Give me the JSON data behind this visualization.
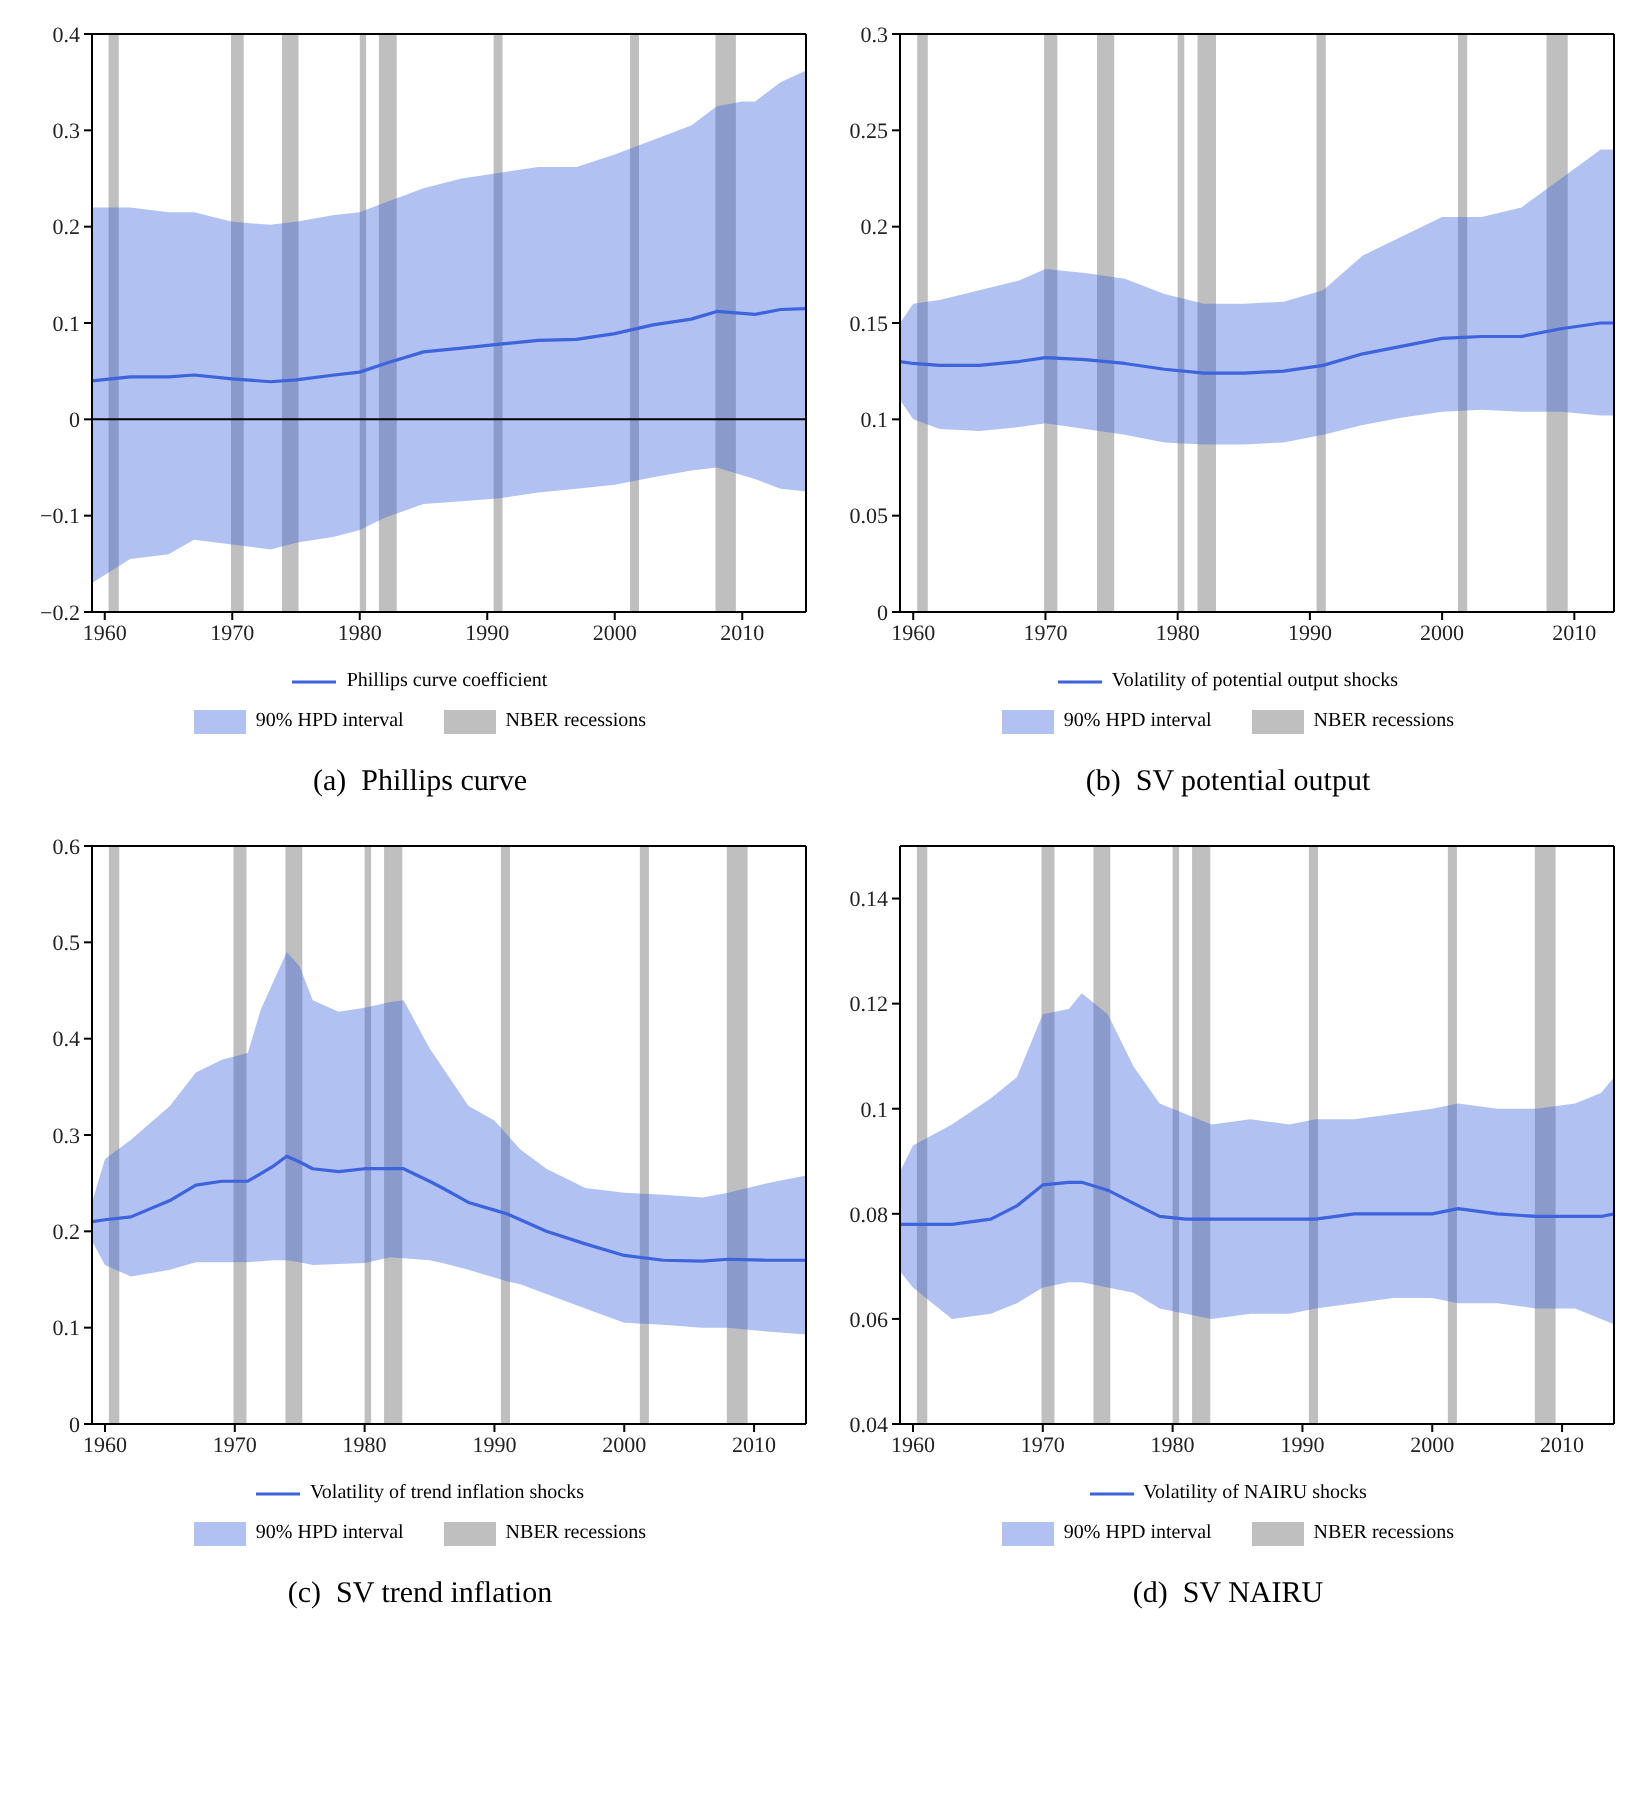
{
  "chart_data": [
    {
      "type": "line",
      "title": "(a)  Phillips curve",
      "xlim": [
        1959,
        2015
      ],
      "xticks": [
        1960,
        1970,
        1980,
        1990,
        2000,
        2010
      ],
      "ylim": [
        -0.2,
        0.4
      ],
      "yticks": [
        -0.2,
        -0.1,
        0,
        0.1,
        0.2,
        0.3,
        0.4
      ],
      "legend": "bottom",
      "annotations": [
        "90% HPD interval"
      ],
      "ref_lines": [
        {
          "axis": "y",
          "value": 0,
          "color": "#000000"
        }
      ],
      "bands": [
        {
          "axis": "x",
          "from": 1960.3,
          "to": 1961.1,
          "label": "NBER recessions",
          "color": "#bfbfbf"
        },
        {
          "axis": "x",
          "from": 1969.9,
          "to": 1970.9,
          "color": "#bfbfbf"
        },
        {
          "axis": "x",
          "from": 1973.9,
          "to": 1975.2,
          "color": "#bfbfbf"
        },
        {
          "axis": "x",
          "from": 1980.0,
          "to": 1980.5,
          "color": "#bfbfbf"
        },
        {
          "axis": "x",
          "from": 1981.5,
          "to": 1982.9,
          "color": "#bfbfbf"
        },
        {
          "axis": "x",
          "from": 1990.5,
          "to": 1991.2,
          "color": "#bfbfbf"
        },
        {
          "axis": "x",
          "from": 2001.2,
          "to": 2001.9,
          "color": "#bfbfbf"
        },
        {
          "axis": "x",
          "from": 2007.9,
          "to": 2009.5,
          "color": "#bfbfbf"
        }
      ],
      "series": [
        {
          "name": "Phillips curve coefficient",
          "color": "#3d63dd",
          "x": [
            1959,
            1962,
            1965,
            1967,
            1970,
            1973,
            1975,
            1978,
            1980,
            1982,
            1985,
            1988,
            1991,
            1994,
            1997,
            2000,
            2003,
            2006,
            2008,
            2010,
            2011,
            2013,
            2015
          ],
          "values": [
            0.04,
            0.044,
            0.044,
            0.046,
            0.042,
            0.039,
            0.041,
            0.046,
            0.049,
            0.058,
            0.07,
            0.074,
            0.078,
            0.082,
            0.083,
            0.089,
            0.098,
            0.104,
            0.112,
            0.11,
            0.109,
            0.114,
            0.115
          ],
          "lower": [
            -0.17,
            -0.145,
            -0.14,
            -0.125,
            -0.13,
            -0.135,
            -0.128,
            -0.122,
            -0.115,
            -0.102,
            -0.088,
            -0.085,
            -0.082,
            -0.076,
            -0.072,
            -0.068,
            -0.06,
            -0.053,
            -0.05,
            -0.058,
            -0.062,
            -0.072,
            -0.075
          ],
          "upper": [
            0.22,
            0.22,
            0.215,
            0.215,
            0.205,
            0.202,
            0.205,
            0.212,
            0.215,
            0.225,
            0.24,
            0.25,
            0.256,
            0.262,
            0.262,
            0.275,
            0.29,
            0.305,
            0.325,
            0.33,
            0.33,
            0.35,
            0.362
          ]
        }
      ]
    },
    {
      "type": "line",
      "title": "(b)  SV potential output",
      "xlim": [
        1959,
        2013
      ],
      "xticks": [
        1960,
        1970,
        1980,
        1990,
        2000,
        2010
      ],
      "ylim": [
        0,
        0.3
      ],
      "yticks": [
        0,
        0.05,
        0.1,
        0.15,
        0.2,
        0.25,
        0.3
      ],
      "legend": "bottom",
      "annotations": [
        "90% HPD interval"
      ],
      "bands": [
        {
          "axis": "x",
          "from": 1960.3,
          "to": 1961.1,
          "label": "NBER recessions",
          "color": "#bfbfbf"
        },
        {
          "axis": "x",
          "from": 1969.9,
          "to": 1970.9,
          "color": "#bfbfbf"
        },
        {
          "axis": "x",
          "from": 1973.9,
          "to": 1975.2,
          "color": "#bfbfbf"
        },
        {
          "axis": "x",
          "from": 1980.0,
          "to": 1980.5,
          "color": "#bfbfbf"
        },
        {
          "axis": "x",
          "from": 1981.5,
          "to": 1982.9,
          "color": "#bfbfbf"
        },
        {
          "axis": "x",
          "from": 1990.5,
          "to": 1991.2,
          "color": "#bfbfbf"
        },
        {
          "axis": "x",
          "from": 2001.2,
          "to": 2001.9,
          "color": "#bfbfbf"
        },
        {
          "axis": "x",
          "from": 2007.9,
          "to": 2009.5,
          "color": "#bfbfbf"
        }
      ],
      "series": [
        {
          "name": "Volatility of potential output shocks",
          "color": "#3d63dd",
          "x": [
            1959,
            1960,
            1962,
            1965,
            1968,
            1970,
            1973,
            1976,
            1979,
            1982,
            1985,
            1988,
            1991,
            1994,
            1997,
            2000,
            2003,
            2006,
            2009,
            2012,
            2013
          ],
          "values": [
            0.13,
            0.129,
            0.128,
            0.128,
            0.13,
            0.132,
            0.131,
            0.129,
            0.126,
            0.124,
            0.124,
            0.125,
            0.128,
            0.134,
            0.138,
            0.142,
            0.143,
            0.143,
            0.147,
            0.15,
            0.15
          ],
          "lower": [
            0.11,
            0.1,
            0.095,
            0.094,
            0.096,
            0.098,
            0.095,
            0.092,
            0.088,
            0.087,
            0.087,
            0.088,
            0.092,
            0.097,
            0.101,
            0.104,
            0.105,
            0.104,
            0.104,
            0.102,
            0.102
          ],
          "upper": [
            0.15,
            0.16,
            0.162,
            0.167,
            0.172,
            0.178,
            0.176,
            0.173,
            0.165,
            0.16,
            0.16,
            0.161,
            0.167,
            0.185,
            0.195,
            0.205,
            0.205,
            0.21,
            0.225,
            0.24,
            0.24
          ]
        }
      ]
    },
    {
      "type": "line",
      "title": "(c)  SV trend inflation",
      "xlim": [
        1959,
        2014
      ],
      "xticks": [
        1960,
        1970,
        1980,
        1990,
        2000,
        2010
      ],
      "ylim": [
        0,
        0.6
      ],
      "yticks": [
        0,
        0.1,
        0.2,
        0.3,
        0.4,
        0.5,
        0.6
      ],
      "legend": "bottom",
      "annotations": [
        "90% HPD interval"
      ],
      "bands": [
        {
          "axis": "x",
          "from": 1960.3,
          "to": 1961.1,
          "label": "NBER recessions",
          "color": "#bfbfbf"
        },
        {
          "axis": "x",
          "from": 1969.9,
          "to": 1970.9,
          "color": "#bfbfbf"
        },
        {
          "axis": "x",
          "from": 1973.9,
          "to": 1975.2,
          "color": "#bfbfbf"
        },
        {
          "axis": "x",
          "from": 1980.0,
          "to": 1980.5,
          "color": "#bfbfbf"
        },
        {
          "axis": "x",
          "from": 1981.5,
          "to": 1982.9,
          "color": "#bfbfbf"
        },
        {
          "axis": "x",
          "from": 1990.5,
          "to": 1991.2,
          "color": "#bfbfbf"
        },
        {
          "axis": "x",
          "from": 2001.2,
          "to": 2001.9,
          "color": "#bfbfbf"
        },
        {
          "axis": "x",
          "from": 2007.9,
          "to": 2009.5,
          "color": "#bfbfbf"
        }
      ],
      "series": [
        {
          "name": "Volatility of trend inflation shocks",
          "color": "#3d63dd",
          "x": [
            1959,
            1960,
            1962,
            1965,
            1967,
            1969,
            1971,
            1972,
            1973,
            1974,
            1975,
            1976,
            1978,
            1980,
            1982,
            1983,
            1985,
            1986,
            1988,
            1990,
            1991,
            1992,
            1994,
            1997,
            2000,
            2003,
            2006,
            2008,
            2011,
            2014
          ],
          "values": [
            0.21,
            0.212,
            0.215,
            0.232,
            0.248,
            0.252,
            0.252,
            0.26,
            0.268,
            0.278,
            0.272,
            0.265,
            0.262,
            0.265,
            0.265,
            0.265,
            0.252,
            0.245,
            0.23,
            0.222,
            0.218,
            0.212,
            0.2,
            0.187,
            0.175,
            0.17,
            0.169,
            0.171,
            0.17,
            0.17
          ],
          "lower": [
            0.19,
            0.165,
            0.153,
            0.16,
            0.168,
            0.168,
            0.168,
            0.169,
            0.17,
            0.17,
            0.168,
            0.165,
            0.166,
            0.167,
            0.173,
            0.172,
            0.17,
            0.167,
            0.16,
            0.152,
            0.148,
            0.145,
            0.135,
            0.12,
            0.105,
            0.103,
            0.1,
            0.1,
            0.096,
            0.093
          ],
          "upper": [
            0.23,
            0.275,
            0.295,
            0.33,
            0.365,
            0.378,
            0.385,
            0.43,
            0.46,
            0.49,
            0.475,
            0.44,
            0.428,
            0.432,
            0.438,
            0.44,
            0.39,
            0.37,
            0.33,
            0.315,
            0.3,
            0.285,
            0.265,
            0.245,
            0.24,
            0.238,
            0.235,
            0.24,
            0.25,
            0.258
          ]
        }
      ]
    },
    {
      "type": "line",
      "title": "(d)  SV NAIRU",
      "xlim": [
        1959,
        2014
      ],
      "xticks": [
        1960,
        1970,
        1980,
        1990,
        2000,
        2010
      ],
      "ylim": [
        0.04,
        0.15
      ],
      "yticks": [
        0.04,
        0.06,
        0.08,
        0.1,
        0.12,
        0.14
      ],
      "legend": "bottom",
      "annotations": [
        "90% HPD interval"
      ],
      "bands": [
        {
          "axis": "x",
          "from": 1960.3,
          "to": 1961.1,
          "label": "NBER recessions",
          "color": "#bfbfbf"
        },
        {
          "axis": "x",
          "from": 1969.9,
          "to": 1970.9,
          "color": "#bfbfbf"
        },
        {
          "axis": "x",
          "from": 1973.9,
          "to": 1975.2,
          "color": "#bfbfbf"
        },
        {
          "axis": "x",
          "from": 1980.0,
          "to": 1980.5,
          "color": "#bfbfbf"
        },
        {
          "axis": "x",
          "from": 1981.5,
          "to": 1982.9,
          "color": "#bfbfbf"
        },
        {
          "axis": "x",
          "from": 1990.5,
          "to": 1991.2,
          "color": "#bfbfbf"
        },
        {
          "axis": "x",
          "from": 2001.2,
          "to": 2001.9,
          "color": "#bfbfbf"
        },
        {
          "axis": "x",
          "from": 2007.9,
          "to": 2009.5,
          "color": "#bfbfbf"
        }
      ],
      "series": [
        {
          "name": "Volatility of NAIRU shocks",
          "color": "#3d63dd",
          "x": [
            1959,
            1960,
            1963,
            1966,
            1968,
            1970,
            1972,
            1973,
            1975,
            1977,
            1979,
            1981,
            1983,
            1986,
            1989,
            1991,
            1994,
            1997,
            2000,
            2002,
            2005,
            2008,
            2011,
            2013,
            2014
          ],
          "values": [
            0.078,
            0.078,
            0.078,
            0.079,
            0.0815,
            0.0855,
            0.086,
            0.086,
            0.0845,
            0.082,
            0.0795,
            0.079,
            0.079,
            0.079,
            0.079,
            0.079,
            0.08,
            0.08,
            0.08,
            0.081,
            0.08,
            0.0795,
            0.0795,
            0.0795,
            0.08
          ],
          "lower": [
            0.069,
            0.066,
            0.06,
            0.061,
            0.063,
            0.066,
            0.067,
            0.067,
            0.066,
            0.065,
            0.062,
            0.061,
            0.06,
            0.061,
            0.061,
            0.062,
            0.063,
            0.064,
            0.064,
            0.063,
            0.063,
            0.062,
            0.062,
            0.06,
            0.059
          ],
          "upper": [
            0.088,
            0.093,
            0.097,
            0.102,
            0.106,
            0.118,
            0.119,
            0.122,
            0.118,
            0.108,
            0.101,
            0.099,
            0.097,
            0.098,
            0.097,
            0.098,
            0.098,
            0.099,
            0.1,
            0.101,
            0.1,
            0.1,
            0.101,
            0.103,
            0.106
          ]
        }
      ]
    }
  ]
}
